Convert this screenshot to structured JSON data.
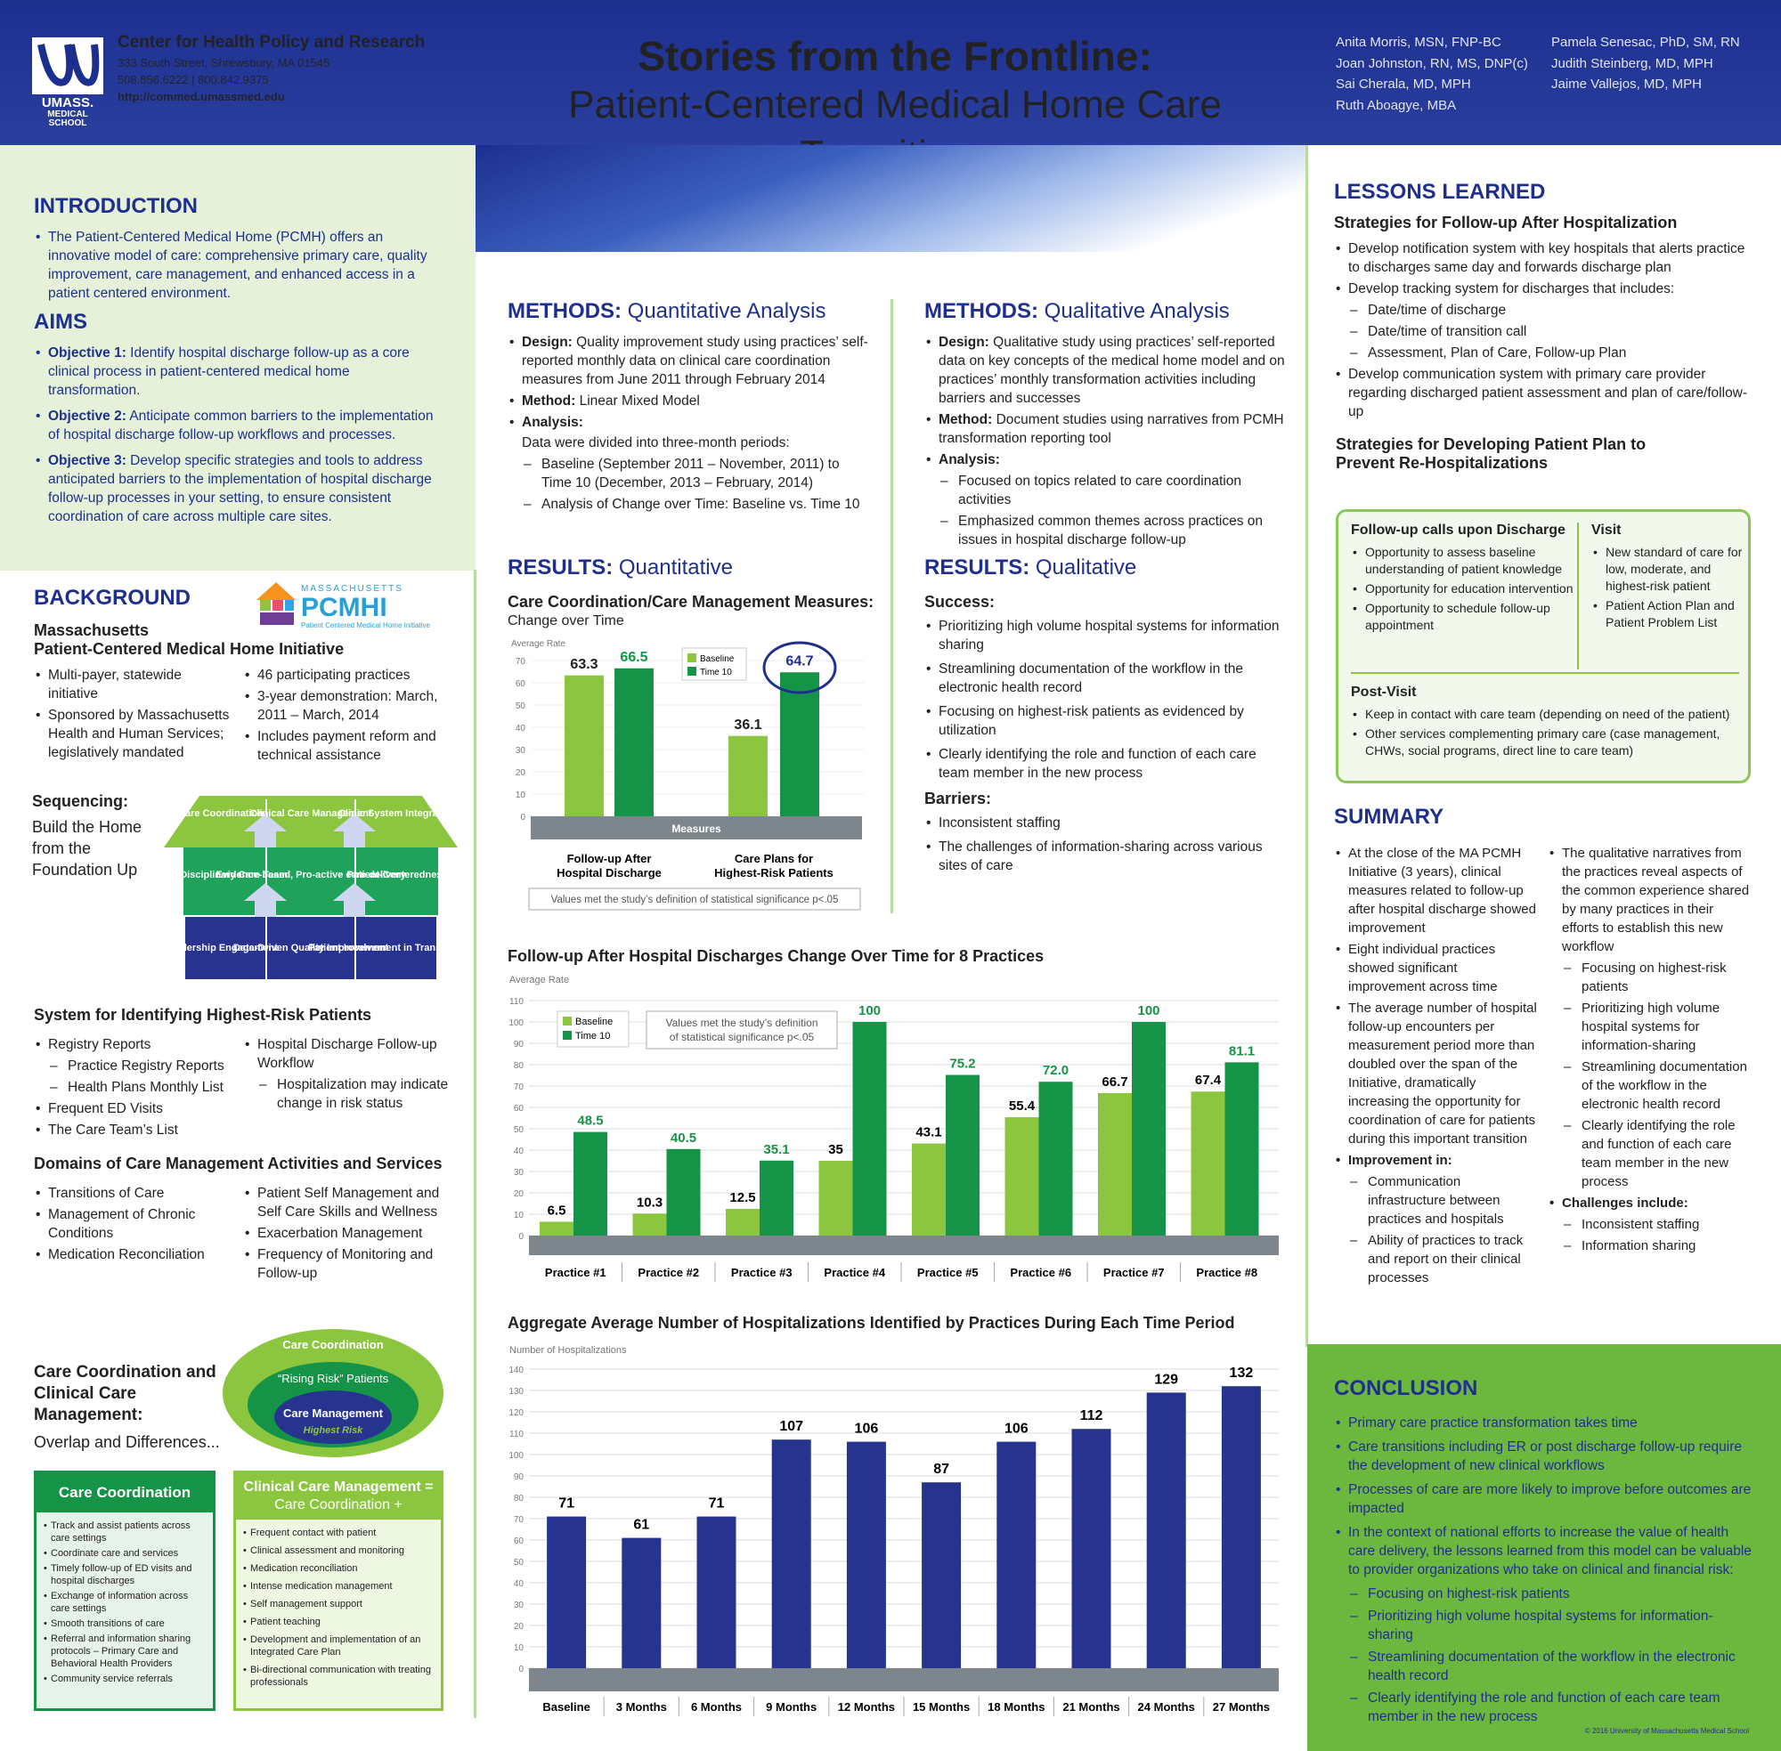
{
  "header": {
    "center_name": "Center for Health Policy and Research",
    "address": "333 South Street, Shrewsbury, MA 01545",
    "phones": "508.856.6222  |  800.842.9375",
    "url": "http://commed.umassmed.edu",
    "logo_text": "UMASS. MEDICAL SCHOOL",
    "title_line1": "Stories from the Frontline:",
    "title_line2": "Patient-Centered Medical Home Care Transitions",
    "authors_col1": [
      "Anita Morris, MSN, FNP-BC",
      "Joan Johnston, RN, MS, DNP(c)",
      "Sai Cherala, MD, MPH",
      "Ruth Aboagye, MBA"
    ],
    "authors_col2": [
      "Pamela Senesac, PhD, SM, RN",
      "Judith Steinberg, MD, MPH",
      "Jaime Vallejos, MD, MPH"
    ]
  },
  "intro": {
    "heading": "INTRODUCTION",
    "items": [
      "The Patient-Centered Medical Home (PCMH) offers an innovative model of care: comprehensive primary care, quality improvement, care management, and enhanced access in a patient centered environment."
    ]
  },
  "aims": {
    "heading": "AIMS",
    "items": [
      {
        "label": "Objective 1:",
        "text": " Identify hospital discharge follow-up as a core clinical process in patient-centered medical home transformation."
      },
      {
        "label": "Objective 2:",
        "text": " Anticipate common barriers to the implementation of hospital discharge follow-up workflows and processes."
      },
      {
        "label": "Objective 3:",
        "text": " Develop specific strategies and tools to address anticipated barriers to the implementation of hospital discharge follow-up processes in your setting, to ensure consistent coordination of care across multiple care sites."
      }
    ]
  },
  "background": {
    "heading": "BACKGROUND",
    "pcmhi_small": "MASSACHUSETTS",
    "pcmhi_big": "PCMHI",
    "pcmhi_sub": "Patient Centered Medical Home Initiative",
    "sub1": "Massachusetts",
    "sub2": "Patient-Centered Medical Home Initiative",
    "colA": [
      "Multi-payer, statewide initiative",
      "Sponsored by Massachusetts Health and Human Services; legislatively mandated"
    ],
    "colB": [
      "46 participating practices",
      "3-year demonstration: March, 2011 – March, 2014",
      "Includes payment reform and technical assistance"
    ],
    "seq_head": "Sequencing:",
    "seq_text": "Build the Home from the Foundation Up",
    "house_roof": [
      "Care Coordination",
      "Clinical Care Management",
      "Clinic System Integration"
    ],
    "house_mid": [
      "Multi-Disciplinary Care Team",
      "Evidence-based, Pro-active care delivery",
      "Patient-Centeredness"
    ],
    "house_base": [
      "Leadership Engagement",
      "Data-Driven Quality Improvement",
      "Patient Involvement in Transformation"
    ]
  },
  "system": {
    "heading": "System for Identifying Highest-Risk Patients",
    "colA": [
      {
        "t": "Registry Reports",
        "d": false
      },
      {
        "t": "Practice Registry Reports",
        "d": true
      },
      {
        "t": "Health Plans Monthly List",
        "d": true
      },
      {
        "t": "Frequent ED Visits",
        "d": false
      },
      {
        "t": "The Care Team’s List",
        "d": false
      }
    ],
    "colB": [
      {
        "t": "Hospital Discharge Follow-up Workflow",
        "d": false
      },
      {
        "t": "Hospitalization may indicate change in risk status",
        "d": true
      }
    ]
  },
  "domains": {
    "heading": "Domains of Care Management Activities and Services",
    "colA": [
      "Transitions of Care",
      "Management of Chronic Conditions",
      "Medication Reconciliation"
    ],
    "colB": [
      "Patient Self Management and Self Care Skills and Wellness",
      "Exacerbation Management",
      "Frequency of Monitoring and Follow-up"
    ]
  },
  "ccm": {
    "heading": "Care Coordination and Clinical Care Management:",
    "sub": "Overlap and Differences...",
    "oval_outer": "Care Coordination",
    "oval_mid": "“Rising Risk” Patients",
    "oval_inner": "Care Management",
    "oval_inner_sub": "Highest Risk",
    "box1_title": "Care Coordination",
    "box1_items": [
      "Track and assist patients across care settings",
      "Coordinate care and services",
      "Timely follow-up of ED visits and hospital discharges",
      "Exchange of information across care settings",
      "Smooth transitions of care",
      "Referral and information sharing protocols – Primary Care and Behavioral Health Providers",
      "Community service referrals"
    ],
    "box2_title": "Clinical Care Management =",
    "box2_title2": "Care Coordination +",
    "box2_items": [
      "Frequent contact with patient",
      "Clinical assessment and monitoring",
      "Medication reconciliation",
      "Intense medication management",
      "Self management support",
      "Patient teaching",
      "Development and implementation of an Integrated Care Plan",
      "Bi-directional communication with treating professionals"
    ]
  },
  "methods_quant": {
    "h_bold": "METHODS:",
    "h_light": " Quantitative Analysis",
    "design_l": "Design:",
    "design": " Quality improvement study using practices’ self-reported monthly data on clinical care coordination measures from June 2011 through February 2014",
    "method_l": "Method:",
    "method": " Linear Mixed Model",
    "analysis_l": "Analysis:",
    "analysis_text": "Data were divided into three-month periods:",
    "dash": [
      "Baseline (September  2011 – November, 2011) to Time 10 (December, 2013 – February, 2014)",
      "Analysis of Change over Time: Baseline vs. Time 10"
    ]
  },
  "methods_qual": {
    "h_bold": "METHODS:",
    "h_light": " Qualitative Analysis",
    "design_l": "Design:",
    "design": " Qualitative study using practices’ self-reported data on key concepts of the medical home model and on practices’ monthly transformation activities including barriers and successes",
    "method_l": "Method:",
    "method": " Document studies using narratives from PCMH transformation reporting tool",
    "analysis_l": "Analysis:",
    "dash": [
      "Focused on topics related to care coordination activities",
      "Emphasized common themes across practices on issues in hospital discharge follow-up"
    ]
  },
  "results_quant": {
    "h_bold": "RESULTS:",
    "h_light": " Quantitative",
    "chart_title": "Care Coordination/Care Management Measures:",
    "chart_sub": "Change over Time",
    "note": "Values met the study’s definition of statistical significance p<.05"
  },
  "results_qual": {
    "h_bold": "RESULTS:",
    "h_light": " Qualitative",
    "success_h": "Success:",
    "success": [
      "Prioritizing high volume hospital systems for information sharing",
      "Streamlining documentation of the workflow in the electronic health record",
      "Focusing on highest-risk patients as evidenced by utilization",
      "Clearly identifying the role and function of each care team member in the new process"
    ],
    "barriers_h": "Barriers:",
    "barriers": [
      "Inconsistent staffing",
      "The challenges of information-sharing across various sites of care"
    ]
  },
  "chart2": {
    "title": "Follow-up After Hospital Discharges Change Over Time for 8 Practices",
    "note": "Values met the study’s definition of statistical significance p<.05"
  },
  "chart3": {
    "title": "Aggregate Average Number of Hospitalizations Identified by Practices During Each Time Period"
  },
  "lessons": {
    "heading": "LESSONS LEARNED",
    "sub1": "Strategies for Follow-up After Hospitalization",
    "items": [
      {
        "t": "Develop notification system with key hospitals that alerts practice to discharges same day and forwards discharge plan",
        "d": false
      },
      {
        "t": "Develop tracking system for discharges that includes:",
        "d": false
      },
      {
        "t": "Date/time of discharge",
        "d": true
      },
      {
        "t": "Date/time of transition call",
        "d": true
      },
      {
        "t": "Assessment, Plan of Care, Follow-up Plan",
        "d": true
      },
      {
        "t": "Develop communication system with primary care provider regarding discharged patient assessment and plan of care/follow-up",
        "d": false
      }
    ],
    "sub2": "Strategies for Developing Patient Plan to Prevent Re-Hospitalizations",
    "fu_h": "Follow-up calls upon Discharge",
    "fu": [
      "Opportunity to assess baseline understanding of patient knowledge",
      "Opportunity for education intervention",
      "Opportunity to schedule follow-up appointment"
    ],
    "visit_h": "Visit",
    "visit": [
      "New standard of care for low, moderate, and highest-risk patient",
      "Patient Action Plan and Patient Problem List"
    ],
    "post_h": "Post-Visit",
    "post": [
      "Keep in contact with care team (depending on need of the patient)",
      "Other services complementing primary care (case management, CHWs, social programs, direct line to care team)"
    ]
  },
  "summary": {
    "heading": "SUMMARY",
    "colA": [
      {
        "t": "At the close of the MA PCMH Initiative (3 years), clinical measures related to follow-up after hospital discharge showed improvement",
        "d": false,
        "b": false
      },
      {
        "t": "Eight individual practices showed significant improvement across time",
        "d": false,
        "b": false
      },
      {
        "t": "The average number of hospital follow-up encounters per measurement period more than doubled over the span of the Initiative, dramatically increasing the opportunity for coordination of care for patients during this important transition",
        "d": false,
        "b": false
      },
      {
        "t": "Improvement in:",
        "d": false,
        "b": true
      },
      {
        "t": "Communication infrastructure between practices and hospitals",
        "d": true,
        "b": false
      },
      {
        "t": "Ability of practices to track and report on their clinical processes",
        "d": true,
        "b": false
      }
    ],
    "colB": [
      {
        "t": "The qualitative narratives from the practices reveal aspects of the common experience shared by many practices in their efforts to establish this new workflow",
        "d": false,
        "b": false
      },
      {
        "t": "Focusing on highest-risk patients",
        "d": true,
        "b": false
      },
      {
        "t": "Prioritizing high volume hospital systems for information-sharing",
        "d": true,
        "b": false
      },
      {
        "t": "Streamlining documentation of the workflow in the electronic health record",
        "d": true,
        "b": false
      },
      {
        "t": "Clearly identifying the role and function of each care team member in the new process",
        "d": true,
        "b": false
      },
      {
        "t": "Challenges include:",
        "d": false,
        "b": true
      },
      {
        "t": "Inconsistent staffing",
        "d": true,
        "b": false
      },
      {
        "t": "Information sharing",
        "d": true,
        "b": false
      }
    ]
  },
  "conclusion": {
    "heading": "CONCLUSION",
    "items": [
      {
        "t": "Primary care practice transformation takes time",
        "d": false
      },
      {
        "t": "Care transitions including ER or post discharge follow-up require the development of new clinical workflows",
        "d": false
      },
      {
        "t": "Processes of care are more likely to improve before outcomes are impacted",
        "d": false
      },
      {
        "t": "In the context of national efforts to increase the value of health care delivery, the lessons learned from this model can be valuable to provider organizations who take on clinical and financial risk:",
        "d": false
      },
      {
        "t": "Focusing on highest-risk patients",
        "d": true
      },
      {
        "t": "Prioritizing high volume hospital systems for information-sharing",
        "d": true
      },
      {
        "t": "Streamlining documentation of the workflow in the electronic health record",
        "d": true
      },
      {
        "t": "Clearly identifying the role and function of each care team member in the new process",
        "d": true
      }
    ],
    "copyright": "© 2016 University of Massachusetts Medical School"
  },
  "colors": {
    "navy": "#1f2f8f",
    "light_green": "#8cc63f",
    "dark_green": "#159447",
    "bar_blue": "#26338f"
  },
  "chart_data": [
    {
      "type": "bar",
      "ylabel": "Average Rate",
      "ylim": [
        0,
        70
      ],
      "xlabel": "Measures",
      "categories": [
        "Follow-up After Hospital Discharge",
        "Care Plans for Highest-Risk Patients"
      ],
      "series": [
        {
          "name": "Baseline",
          "values": [
            63.3,
            36.1
          ]
        },
        {
          "name": "Time 10",
          "values": [
            66.5,
            64.7
          ]
        }
      ],
      "legend": "top",
      "yticks": [
        0,
        10,
        20,
        30,
        40,
        50,
        60,
        70
      ]
    },
    {
      "type": "bar",
      "ylabel": "Average Rate",
      "ylim": [
        0,
        110
      ],
      "categories": [
        "Practice #1",
        "Practice #2",
        "Practice #3",
        "Practice #4",
        "Practice #5",
        "Practice #6",
        "Practice #7",
        "Practice #8"
      ],
      "series": [
        {
          "name": "Baseline",
          "values": [
            6.5,
            10.3,
            12.5,
            35,
            43.1,
            55.4,
            66.7,
            67.4
          ]
        },
        {
          "name": "Time 10",
          "values": [
            48.5,
            40.5,
            35.1,
            100,
            75.2,
            72.0,
            100,
            81.1
          ]
        }
      ],
      "labels_b": [
        "6.5",
        "10.3",
        "12.5",
        "35",
        "43.1",
        "55.4",
        "66.7",
        "67.4"
      ],
      "labels_t": [
        "48.5",
        "40.5",
        "35.1",
        "100",
        "75.2",
        "72.0",
        "100",
        "81.1"
      ],
      "legend": "top-left",
      "yticks": [
        0,
        10,
        20,
        30,
        40,
        50,
        60,
        70,
        80,
        90,
        100,
        110
      ]
    },
    {
      "type": "bar",
      "ylabel": "Number of Hospitalizations",
      "ylim": [
        0,
        140
      ],
      "categories": [
        "Baseline",
        "3 Months",
        "6 Months",
        "9 Months",
        "12 Months",
        "15 Months",
        "18 Months",
        "21 Months",
        "24 Months",
        "27 Months"
      ],
      "series": [
        {
          "values": [
            71,
            61,
            71,
            107,
            106,
            87,
            106,
            112,
            129,
            132
          ]
        }
      ],
      "yticks": [
        0,
        10,
        20,
        30,
        40,
        50,
        60,
        70,
        80,
        90,
        100,
        110,
        120,
        130,
        140
      ]
    }
  ]
}
